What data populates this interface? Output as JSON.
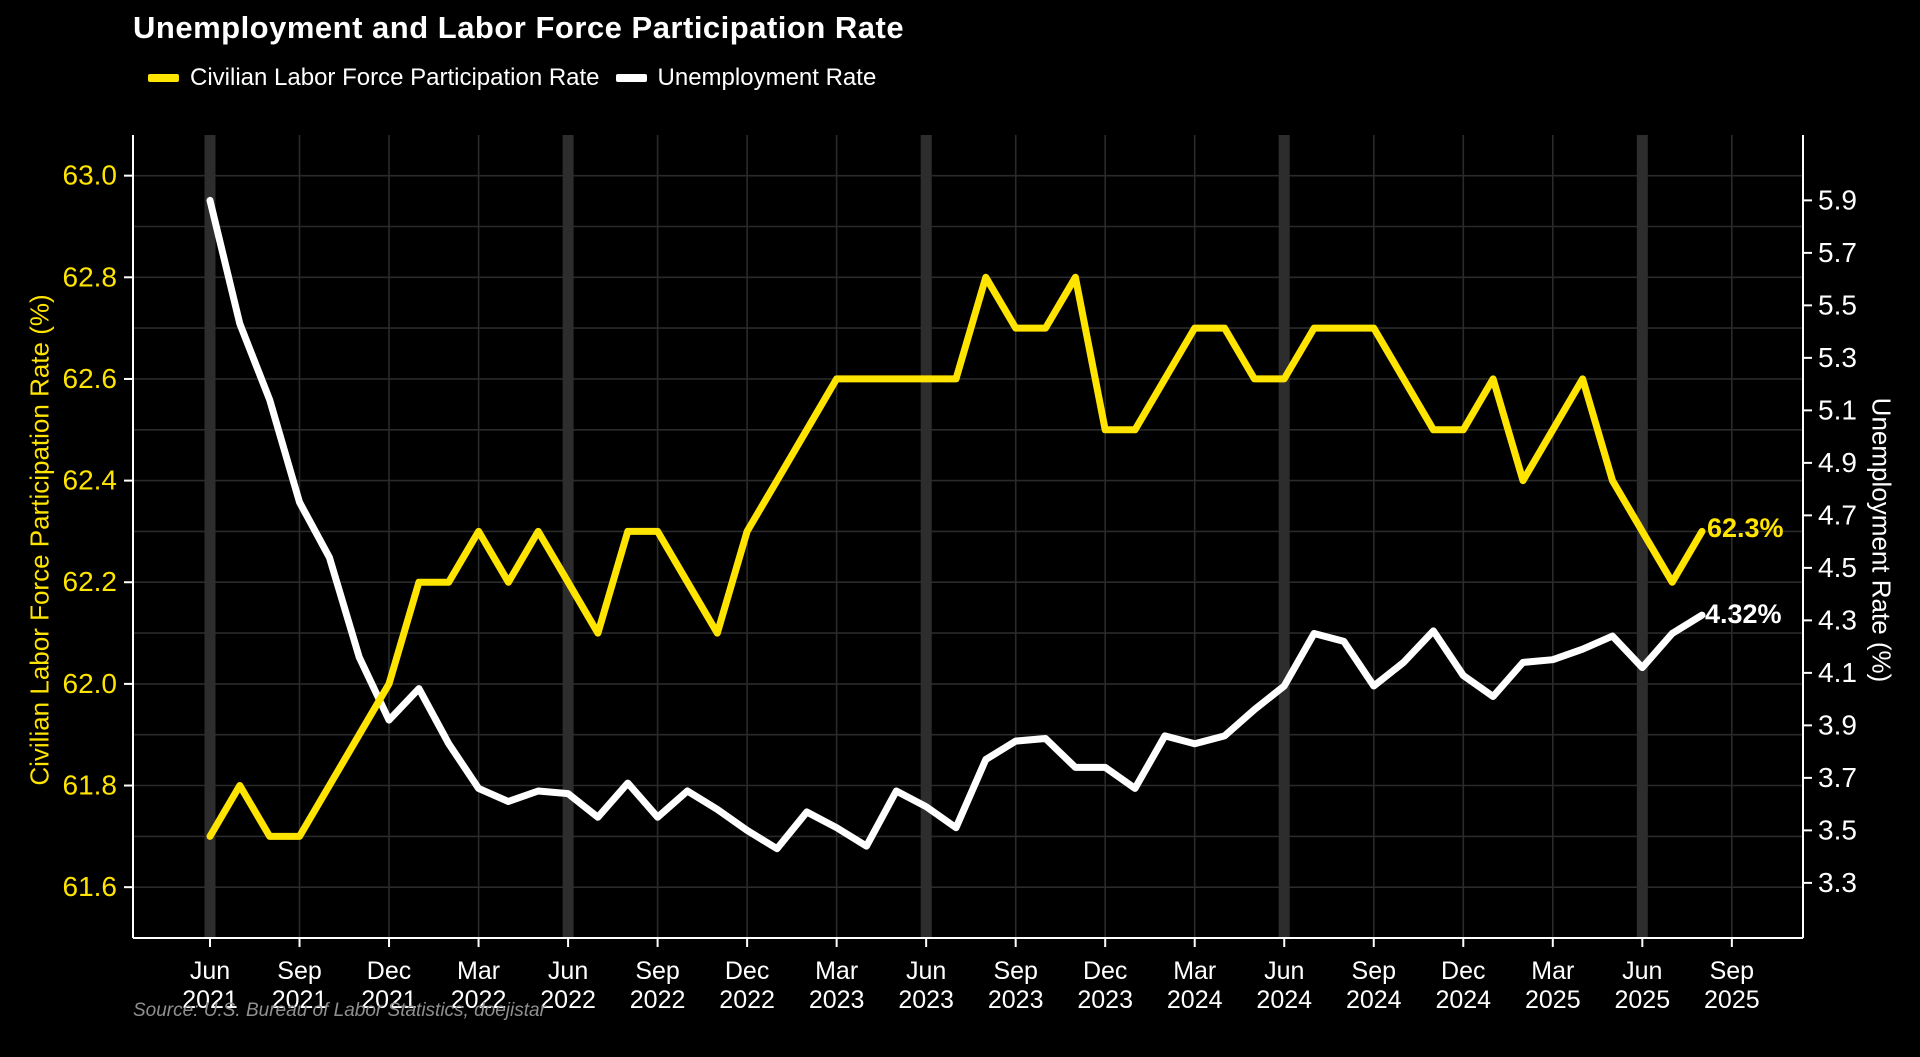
{
  "title": "Unemployment and Labor Force Participation Rate",
  "legend": [
    {
      "label": "Civilian Labor Force Participation Rate",
      "color": "#ffe400"
    },
    {
      "label": "Unemployment Rate",
      "color": "#ffffff"
    }
  ],
  "left_axis": {
    "title": "Civilian Labor Force Participation Rate (%)",
    "ticks": [
      "63.0",
      "62.8",
      "62.6",
      "62.4",
      "62.2",
      "62.0",
      "61.8",
      "61.6"
    ],
    "color": "#ffe400"
  },
  "right_axis": {
    "title": "Unemployment Rate (%)",
    "ticks": [
      "5.9",
      "5.7",
      "5.5",
      "5.3",
      "5.1",
      "4.9",
      "4.7",
      "4.5",
      "4.3",
      "4.1",
      "3.9",
      "3.7",
      "3.5",
      "3.3"
    ],
    "color": "#ffffff"
  },
  "x_axis": {
    "ticks": [
      {
        "month": "Jun",
        "year": "2021"
      },
      {
        "month": "Sep",
        "year": "2021"
      },
      {
        "month": "Dec",
        "year": "2021"
      },
      {
        "month": "Mar",
        "year": "2022"
      },
      {
        "month": "Jun",
        "year": "2022"
      },
      {
        "month": "Sep",
        "year": "2022"
      },
      {
        "month": "Dec",
        "year": "2022"
      },
      {
        "month": "Mar",
        "year": "2023"
      },
      {
        "month": "Jun",
        "year": "2023"
      },
      {
        "month": "Sep",
        "year": "2023"
      },
      {
        "month": "Dec",
        "year": "2023"
      },
      {
        "month": "Mar",
        "year": "2024"
      },
      {
        "month": "Jun",
        "year": "2024"
      },
      {
        "month": "Sep",
        "year": "2024"
      },
      {
        "month": "Dec",
        "year": "2024"
      },
      {
        "month": "Mar",
        "year": "2025"
      },
      {
        "month": "Jun",
        "year": "2025"
      },
      {
        "month": "Sep",
        "year": "2025"
      }
    ]
  },
  "annotations": {
    "lfpr_last": "62.3%",
    "unrate_last": "4.32%"
  },
  "source": "Source: U.S. Bureau of Labor Statistics, doejistar",
  "colors": {
    "background": "#000000",
    "gridline": "#2a2a2a",
    "june_band": "#2d2d2d",
    "spine": "#ffffff",
    "lfpr_line": "#ffe400",
    "unrate_line": "#ffffff"
  },
  "chart_data": {
    "type": "line",
    "title": "Unemployment and Labor Force Participation Rate",
    "xlabel": "",
    "ylabel_left": "Civilian Labor Force Participation Rate (%)",
    "ylabel_right": "Unemployment Rate (%)",
    "x_tick_labels": [
      "Jun 2021",
      "Sep 2021",
      "Dec 2021",
      "Mar 2022",
      "Jun 2022",
      "Sep 2022",
      "Dec 2022",
      "Mar 2023",
      "Jun 2023",
      "Sep 2023",
      "Dec 2023",
      "Mar 2024",
      "Jun 2024",
      "Sep 2024",
      "Dec 2024",
      "Mar 2025",
      "Jun 2025",
      "Sep 2025"
    ],
    "ylim_left": [
      61.5,
      63.08
    ],
    "ylim_right": [
      3.09,
      6.149
    ],
    "grid": "horizontal every 0.1 of left axis, vertical at quarterly ticks, wide dark band each June",
    "legend_position": "top-left above plot",
    "months": [
      "Jun 2021",
      "Jul 2021",
      "Aug 2021",
      "Sep 2021",
      "Oct 2021",
      "Nov 2021",
      "Dec 2021",
      "Jan 2022",
      "Feb 2022",
      "Mar 2022",
      "Apr 2022",
      "May 2022",
      "Jun 2022",
      "Jul 2022",
      "Aug 2022",
      "Sep 2022",
      "Oct 2022",
      "Nov 2022",
      "Dec 2022",
      "Jan 2023",
      "Feb 2023",
      "Mar 2023",
      "Apr 2023",
      "May 2023",
      "Jun 2023",
      "Jul 2023",
      "Aug 2023",
      "Sep 2023",
      "Oct 2023",
      "Nov 2023",
      "Dec 2023",
      "Jan 2024",
      "Feb 2024",
      "Mar 2024",
      "Apr 2024",
      "May 2024",
      "Jun 2024",
      "Jul 2024",
      "Aug 2024",
      "Sep 2024",
      "Oct 2024",
      "Nov 2024",
      "Dec 2024",
      "Jan 2025",
      "Feb 2025",
      "Mar 2025",
      "Apr 2025",
      "May 2025",
      "Jun 2025",
      "Jul 2025",
      "Aug 2025"
    ],
    "series": [
      {
        "name": "Civilian Labor Force Participation Rate",
        "axis": "left",
        "color": "#ffe400",
        "last_label": "62.3%",
        "values": [
          61.7,
          61.8,
          61.7,
          61.7,
          61.8,
          61.9,
          62.0,
          62.2,
          62.2,
          62.3,
          62.2,
          62.3,
          62.2,
          62.1,
          62.3,
          62.3,
          62.2,
          62.1,
          62.3,
          62.4,
          62.5,
          62.6,
          62.6,
          62.6,
          62.6,
          62.6,
          62.8,
          62.7,
          62.7,
          62.8,
          62.5,
          62.5,
          62.6,
          62.7,
          62.7,
          62.6,
          62.6,
          62.7,
          62.7,
          62.7,
          62.6,
          62.5,
          62.5,
          62.6,
          62.4,
          62.5,
          62.6,
          62.4,
          62.3,
          62.2,
          62.3
        ]
      },
      {
        "name": "Unemployment Rate",
        "axis": "right",
        "color": "#ffffff",
        "last_label": "4.32%",
        "values": [
          5.9,
          5.43,
          5.14,
          4.75,
          4.54,
          4.16,
          3.92,
          4.04,
          3.83,
          3.66,
          3.61,
          3.65,
          3.64,
          3.55,
          3.68,
          3.55,
          3.65,
          3.58,
          3.5,
          3.43,
          3.57,
          3.51,
          3.44,
          3.65,
          3.59,
          3.51,
          3.77,
          3.84,
          3.85,
          3.74,
          3.74,
          3.66,
          3.86,
          3.83,
          3.86,
          3.96,
          4.05,
          4.25,
          4.22,
          4.05,
          4.14,
          4.26,
          4.09,
          4.01,
          4.14,
          4.15,
          4.19,
          4.24,
          4.12,
          4.25,
          4.32
        ]
      }
    ]
  }
}
